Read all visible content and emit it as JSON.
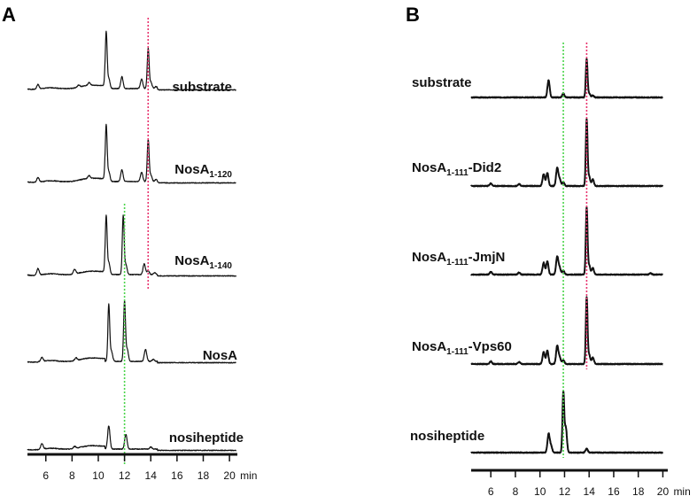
{
  "chart_data": [
    {
      "type": "line",
      "panel_label": "A",
      "xlabel": "min",
      "xlim": [
        4.6,
        20.6
      ],
      "xticks": [
        "6",
        "8",
        "10",
        "12",
        "14",
        "16",
        "18",
        "20"
      ],
      "tick_values": [
        6,
        8,
        10,
        12,
        14,
        16,
        18,
        20
      ],
      "grid": false,
      "reference_lines": [
        {
          "x": 13.8,
          "color": "#e8336e",
          "from_trace": 0,
          "to_trace": 2
        },
        {
          "x": 12.0,
          "color": "#4bd44b",
          "from_trace": 2,
          "to_trace": 4
        }
      ],
      "series": [
        {
          "name": "substrate",
          "name_sub": "",
          "peaks": [
            [
              5.4,
              7
            ],
            [
              8.5,
              3
            ],
            [
              9.3,
              4
            ],
            [
              10.6,
              85
            ],
            [
              10.8,
              15
            ],
            [
              11.8,
              18
            ],
            [
              13.3,
              14
            ],
            [
              13.8,
              60
            ],
            [
              14.0,
              10
            ],
            [
              14.4,
              3
            ]
          ]
        },
        {
          "name": "NosA",
          "name_sub": "1-120",
          "peaks": [
            [
              5.4,
              7
            ],
            [
              9.3,
              4
            ],
            [
              10.6,
              85
            ],
            [
              10.8,
              15
            ],
            [
              11.8,
              18
            ],
            [
              13.3,
              14
            ],
            [
              13.8,
              63
            ],
            [
              14.0,
              10
            ],
            [
              14.4,
              3
            ]
          ]
        },
        {
          "name": "NosA",
          "name_sub": "1-140",
          "peaks": [
            [
              5.4,
              10
            ],
            [
              8.2,
              7
            ],
            [
              10.6,
              88
            ],
            [
              10.8,
              18
            ],
            [
              11.9,
              88
            ],
            [
              12.1,
              15
            ],
            [
              13.5,
              16
            ],
            [
              13.8,
              6
            ],
            [
              14.3,
              3
            ]
          ]
        },
        {
          "name": "NosA",
          "name_sub": "",
          "peaks": [
            [
              5.7,
              6
            ],
            [
              8.3,
              4
            ],
            [
              10.8,
              85
            ],
            [
              11.0,
              15
            ],
            [
              12.0,
              90
            ],
            [
              12.2,
              18
            ],
            [
              13.6,
              18
            ],
            [
              14.2,
              3
            ]
          ]
        },
        {
          "name": "nosiheptide",
          "name_sub": "",
          "peaks": [
            [
              5.7,
              8
            ],
            [
              8.2,
              3
            ],
            [
              10.8,
              35
            ],
            [
              12.1,
              22
            ],
            [
              14.0,
              3
            ]
          ]
        }
      ]
    },
    {
      "type": "line",
      "panel_label": "B",
      "xlabel": "min",
      "xlim": [
        4.4,
        20.4
      ],
      "xticks": [
        "6",
        "8",
        "10",
        "12",
        "14",
        "16",
        "18",
        "20"
      ],
      "tick_values": [
        6,
        8,
        10,
        12,
        14,
        16,
        18,
        20
      ],
      "grid": false,
      "reference_lines": [
        {
          "x": 11.9,
          "color": "#4bd44b",
          "from_trace": 0,
          "to_trace": 4
        },
        {
          "x": 13.8,
          "color": "#e8336e",
          "from_trace": 0,
          "to_trace": 3
        }
      ],
      "series": [
        {
          "name": "substrate",
          "name_sub": "",
          "peaks": [
            [
              10.7,
              26
            ],
            [
              11.9,
              6
            ],
            [
              13.8,
              57
            ],
            [
              14.0,
              6
            ],
            [
              14.3,
              3
            ]
          ]
        },
        {
          "name": "NosA",
          "name_sub": "1-111",
          "name_suffix": "-Did2",
          "peaks": [
            [
              6.0,
              4
            ],
            [
              8.3,
              3
            ],
            [
              10.3,
              18
            ],
            [
              10.6,
              20
            ],
            [
              11.4,
              27
            ],
            [
              11.6,
              10
            ],
            [
              11.9,
              6
            ],
            [
              13.8,
              100
            ],
            [
              14.0,
              14
            ],
            [
              14.3,
              10
            ]
          ]
        },
        {
          "name": "NosA",
          "name_sub": "1-111",
          "name_suffix": "-JmjN",
          "peaks": [
            [
              6.0,
              4
            ],
            [
              8.3,
              3
            ],
            [
              10.3,
              18
            ],
            [
              10.6,
              20
            ],
            [
              11.4,
              27
            ],
            [
              11.6,
              10
            ],
            [
              11.9,
              6
            ],
            [
              13.8,
              100
            ],
            [
              14.0,
              14
            ],
            [
              14.3,
              10
            ],
            [
              19.0,
              2
            ]
          ]
        },
        {
          "name": "NosA",
          "name_sub": "1-111",
          "name_suffix": "-Vps60",
          "peaks": [
            [
              6.0,
              4
            ],
            [
              8.3,
              3
            ],
            [
              10.3,
              18
            ],
            [
              10.6,
              20
            ],
            [
              11.4,
              27
            ],
            [
              11.6,
              10
            ],
            [
              11.9,
              6
            ],
            [
              13.8,
              100
            ],
            [
              14.0,
              14
            ],
            [
              14.3,
              10
            ]
          ]
        },
        {
          "name": "nosiheptide",
          "name_sub": "",
          "peaks": [
            [
              10.7,
              28
            ],
            [
              10.9,
              10
            ],
            [
              11.9,
              90
            ],
            [
              12.1,
              38
            ],
            [
              13.8,
              6
            ]
          ]
        }
      ]
    }
  ]
}
